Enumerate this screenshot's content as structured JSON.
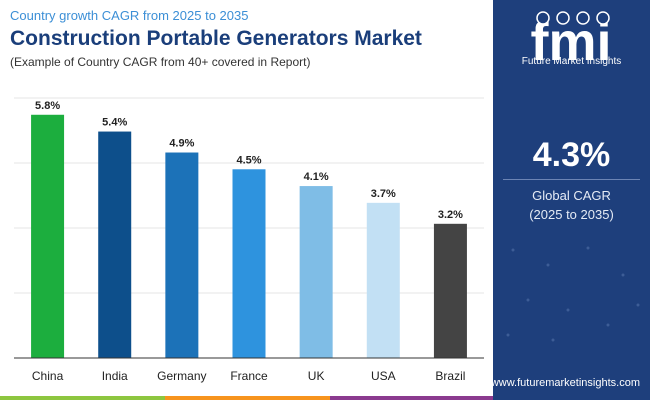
{
  "header": {
    "subtitle": "Country growth CAGR from 2025 to 2035",
    "title": "Construction Portable Generators Market",
    "note": "(Example of Country CAGR from 40+ covered in Report)"
  },
  "brand": {
    "logo_text": "fmi",
    "name": "Future Market Insights",
    "url": "www.futuremarketinsights.com",
    "panel_color": "#1e3f7c"
  },
  "summary": {
    "value": "4.3%",
    "label_line1": "Global CAGR",
    "label_line2": "(2025 to 2035)"
  },
  "chart_data": {
    "type": "bar",
    "categories": [
      "China",
      "India",
      "Germany",
      "France",
      "UK",
      "USA",
      "Brazil"
    ],
    "values": [
      5.8,
      5.4,
      4.9,
      4.5,
      4.1,
      3.7,
      3.2
    ],
    "value_labels": [
      "5.8%",
      "5.4%",
      "4.9%",
      "4.5%",
      "4.1%",
      "3.7%",
      "3.2%"
    ],
    "colors": [
      "#1cae3e",
      "#0d4f8b",
      "#1c72b8",
      "#2e93de",
      "#7fbde6",
      "#c2e0f4",
      "#444444"
    ],
    "ylim": [
      0,
      6.2
    ],
    "grid": true,
    "legend": "none"
  }
}
